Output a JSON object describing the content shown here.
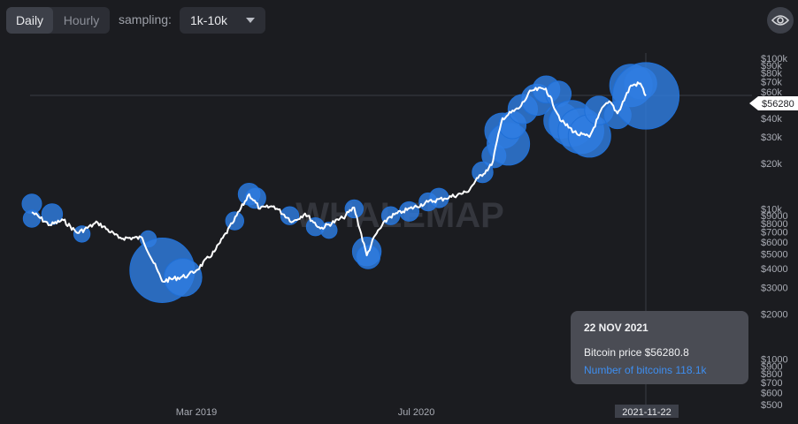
{
  "controls": {
    "interval_options": [
      "Daily",
      "Hourly"
    ],
    "interval_selected": "Daily",
    "sampling_label": "sampling:",
    "sampling_value": "1k-10k"
  },
  "icons": {
    "toggle_visibility": "eye-icon"
  },
  "colors": {
    "background": "#1b1c20",
    "bubble": "#2f7de0",
    "line": "#ffffff",
    "accent": "#3e8ef0"
  },
  "chart_data": {
    "type": "scatter",
    "title": "",
    "watermark": "WHALEMAP",
    "y_scale": "log",
    "ylim": [
      500,
      100000
    ],
    "y_tick_labels": [
      "$100k",
      "$90k",
      "$80k",
      "$70k",
      "$60k",
      "$50k",
      "$40k",
      "$30k",
      "$20k",
      "$10k",
      "$9000",
      "$8000",
      "$7000",
      "$6000",
      "$5000",
      "$4000",
      "$3000",
      "$2000",
      "$1000",
      "$900",
      "$800",
      "$700",
      "$600",
      "$500"
    ],
    "x_tick_labels": [
      "Mar 2019",
      "Jul 2020"
    ],
    "crosshair": {
      "x_label": "2021-11-22",
      "y_label": "$56280"
    },
    "price_line": [
      [
        "2018-03-01",
        9500
      ],
      [
        "2018-04-10",
        7800
      ],
      [
        "2018-05-10",
        8400
      ],
      [
        "2018-06-10",
        6900
      ],
      [
        "2018-07-25",
        8100
      ],
      [
        "2018-09-10",
        6400
      ],
      [
        "2018-11-01",
        6400
      ],
      [
        "2018-12-15",
        3300
      ],
      [
        "2019-02-10",
        3600
      ],
      [
        "2019-03-01",
        3900
      ],
      [
        "2019-04-10",
        5200
      ],
      [
        "2019-05-20",
        8000
      ],
      [
        "2019-06-26",
        12500
      ],
      [
        "2019-07-20",
        10000
      ],
      [
        "2019-08-20",
        10400
      ],
      [
        "2019-10-01",
        8200
      ],
      [
        "2019-10-28",
        9300
      ],
      [
        "2019-12-01",
        7400
      ],
      [
        "2020-01-20",
        8700
      ],
      [
        "2020-02-14",
        10200
      ],
      [
        "2020-03-13",
        4900
      ],
      [
        "2020-04-01",
        6700
      ],
      [
        "2020-05-01",
        8800
      ],
      [
        "2020-06-01",
        9600
      ],
      [
        "2020-07-27",
        11100
      ],
      [
        "2020-09-01",
        11700
      ],
      [
        "2020-10-21",
        12900
      ],
      [
        "2020-11-15",
        16000
      ],
      [
        "2020-12-15",
        19500
      ],
      [
        "2021-01-08",
        40000
      ],
      [
        "2021-02-15",
        47000
      ],
      [
        "2021-03-13",
        61000
      ],
      [
        "2021-04-14",
        63000
      ],
      [
        "2021-05-19",
        38000
      ],
      [
        "2021-06-22",
        31500
      ],
      [
        "2021-07-20",
        30000
      ],
      [
        "2021-08-20",
        48000
      ],
      [
        "2021-09-05",
        51000
      ],
      [
        "2021-09-20",
        43000
      ],
      [
        "2021-10-20",
        66000
      ],
      [
        "2021-11-10",
        68000
      ],
      [
        "2021-11-22",
        56280
      ]
    ],
    "bubbles": [
      {
        "date": "2018-03-01",
        "price": 10800,
        "btc": 4
      },
      {
        "date": "2018-03-01",
        "price": 8600,
        "btc": 2.5
      },
      {
        "date": "2018-04-15",
        "price": 9200,
        "btc": 5
      },
      {
        "date": "2018-06-20",
        "price": 6800,
        "btc": 2
      },
      {
        "date": "2018-11-14",
        "price": 6300,
        "btc": 2
      },
      {
        "date": "2018-12-15",
        "price": 3900,
        "btc": 110
      },
      {
        "date": "2019-01-30",
        "price": 3500,
        "btc": 30
      },
      {
        "date": "2019-05-25",
        "price": 8300,
        "btc": 3
      },
      {
        "date": "2019-06-26",
        "price": 12500,
        "btc": 6
      },
      {
        "date": "2019-07-10",
        "price": 11800,
        "btc": 5
      },
      {
        "date": "2019-09-24",
        "price": 9000,
        "btc": 3
      },
      {
        "date": "2019-11-20",
        "price": 7600,
        "btc": 3
      },
      {
        "date": "2019-12-20",
        "price": 7200,
        "btc": 2
      },
      {
        "date": "2020-02-14",
        "price": 10000,
        "btc": 3
      },
      {
        "date": "2020-03-13",
        "price": 5200,
        "btc": 14
      },
      {
        "date": "2020-03-16",
        "price": 4800,
        "btc": 8
      },
      {
        "date": "2020-05-05",
        "price": 9000,
        "btc": 3
      },
      {
        "date": "2020-06-15",
        "price": 9600,
        "btc": 4
      },
      {
        "date": "2020-07-27",
        "price": 11100,
        "btc": 3
      },
      {
        "date": "2020-08-20",
        "price": 11800,
        "btc": 4
      },
      {
        "date": "2020-11-25",
        "price": 17500,
        "btc": 5
      },
      {
        "date": "2020-12-20",
        "price": 22500,
        "btc": 8
      },
      {
        "date": "2021-01-08",
        "price": 33000,
        "btc": 25
      },
      {
        "date": "2021-01-21",
        "price": 27000,
        "btc": 40
      },
      {
        "date": "2021-01-30",
        "price": 36000,
        "btc": 12
      },
      {
        "date": "2021-02-22",
        "price": 46000,
        "btc": 15
      },
      {
        "date": "2021-03-25",
        "price": 53000,
        "btc": 18
      },
      {
        "date": "2021-04-15",
        "price": 62000,
        "btc": 12
      },
      {
        "date": "2021-05-12",
        "price": 58000,
        "btc": 10
      },
      {
        "date": "2021-05-19",
        "price": 38500,
        "btc": 25
      },
      {
        "date": "2021-06-10",
        "price": 37000,
        "btc": 48
      },
      {
        "date": "2021-07-01",
        "price": 33000,
        "btc": 48
      },
      {
        "date": "2021-07-20",
        "price": 30500,
        "btc": 40
      },
      {
        "date": "2021-08-10",
        "price": 45000,
        "btc": 14
      },
      {
        "date": "2021-09-20",
        "price": 42000,
        "btc": 12
      },
      {
        "date": "2021-10-20",
        "price": 66000,
        "btc": 40
      },
      {
        "date": "2021-11-10",
        "price": 68000,
        "btc": 20
      },
      {
        "date": "2021-11-22",
        "price": 56280,
        "btc": 118.1
      }
    ]
  },
  "tooltip": {
    "date": "22 NOV 2021",
    "price_line": "Bitcoin price $56280.8",
    "bitcoins_line": "Number of bitcoins 118.1k"
  }
}
